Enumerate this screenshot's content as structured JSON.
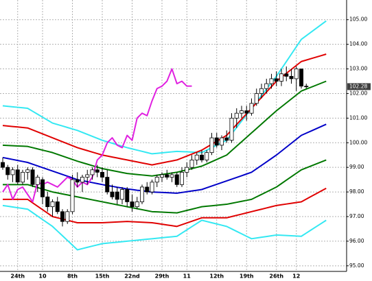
{
  "chart_data": {
    "type": "candlestick",
    "categories": [
      null,
      null,
      null,
      "24th",
      null,
      null,
      null,
      null,
      "10",
      null,
      null,
      null,
      null,
      null,
      "8th",
      null,
      null,
      null,
      null,
      null,
      "15th",
      null,
      null,
      null,
      null,
      null,
      "22nd",
      null,
      null,
      null,
      null,
      null,
      "29th",
      null,
      null,
      null,
      null,
      "11",
      null,
      null,
      null,
      null,
      null,
      "12th",
      null,
      null,
      null,
      null,
      null,
      "19th",
      null,
      null,
      null,
      null,
      null,
      "26th",
      null,
      null,
      null,
      "12",
      null,
      null,
      null,
      null,
      null,
      null
    ],
    "open": [
      99.2,
      99.0,
      98.7,
      98.9,
      98.4,
      98.8,
      98.9,
      98.3,
      98.5,
      97.8,
      97.4,
      97.6,
      97.2,
      96.8,
      97.2,
      98.5,
      98.4,
      98.6,
      98.7,
      98.9,
      98.8,
      98.6,
      98.0,
      98.0,
      97.7,
      98.1,
      97.6,
      97.4,
      97.6,
      98.2,
      98.0,
      98.4,
      98.6,
      98.7,
      98.6,
      98.7,
      98.3,
      98.8,
      99.0,
      99.3,
      99.5,
      99.3,
      99.6,
      100.2,
      99.9,
      100.2,
      100.1,
      101.0,
      101.2,
      101.3,
      101.2,
      101.6,
      102.0,
      102.2,
      102.4,
      102.6,
      102.5,
      102.8,
      102.7,
      102.6,
      103.0,
      102.3,
      null,
      null,
      null,
      null
    ],
    "high": [
      99.4,
      99.1,
      99.0,
      99.1,
      98.9,
      99.0,
      99.0,
      98.7,
      98.6,
      98.0,
      97.7,
      97.8,
      97.3,
      97.3,
      98.7,
      98.8,
      98.7,
      98.9,
      99.0,
      99.1,
      99.0,
      98.9,
      98.3,
      98.2,
      98.2,
      98.2,
      97.9,
      97.8,
      98.3,
      98.4,
      98.5,
      98.7,
      98.8,
      98.9,
      98.8,
      98.8,
      99.0,
      99.2,
      99.5,
      99.6,
      99.7,
      99.7,
      100.4,
      100.4,
      100.3,
      100.5,
      101.2,
      101.4,
      101.5,
      101.5,
      101.8,
      102.2,
      102.4,
      102.6,
      102.8,
      102.9,
      103.0,
      103.1,
      103.0,
      103.1,
      103.0,
      102.4,
      null,
      null,
      null,
      null
    ],
    "low": [
      98.9,
      98.5,
      98.4,
      98.3,
      98.3,
      98.5,
      98.2,
      98.0,
      97.5,
      97.2,
      97.0,
      97.1,
      96.6,
      96.7,
      97.1,
      98.2,
      98.0,
      98.3,
      98.5,
      98.6,
      98.4,
      97.9,
      97.7,
      97.5,
      97.5,
      97.4,
      97.2,
      97.3,
      97.5,
      97.9,
      97.9,
      98.2,
      98.4,
      98.5,
      98.4,
      98.2,
      98.2,
      98.6,
      98.9,
      99.1,
      99.2,
      99.2,
      99.5,
      99.8,
      99.7,
      100.0,
      100.0,
      100.6,
      101.0,
      100.9,
      101.1,
      101.5,
      101.8,
      102.0,
      102.2,
      102.3,
      102.3,
      102.5,
      102.4,
      102.1,
      102.2,
      102.2,
      null,
      null,
      null,
      null
    ],
    "close": [
      99.0,
      98.7,
      98.9,
      98.4,
      98.8,
      98.9,
      98.3,
      98.6,
      97.8,
      97.4,
      97.6,
      97.2,
      96.8,
      97.2,
      98.5,
      98.4,
      98.6,
      98.7,
      98.9,
      98.8,
      98.6,
      98.0,
      97.8,
      97.7,
      98.1,
      97.6,
      97.4,
      97.6,
      98.2,
      98.0,
      98.4,
      98.6,
      98.7,
      98.6,
      98.7,
      98.3,
      98.8,
      99.0,
      99.3,
      99.5,
      99.3,
      99.6,
      100.2,
      99.9,
      100.2,
      100.1,
      101.0,
      101.2,
      101.3,
      101.2,
      101.6,
      102.0,
      102.2,
      102.4,
      102.6,
      102.5,
      102.8,
      102.7,
      102.6,
      103.0,
      102.3,
      102.28,
      null,
      null,
      null,
      null
    ],
    "up_color": "#ffffff",
    "down_color": "#000000",
    "wick_color": "#000000",
    "series": [
      {
        "color": "#33e8f2",
        "values": [
          101.5,
          101.48,
          101.46,
          101.44,
          101.42,
          101.4,
          101.28,
          101.16,
          101.04,
          100.92,
          100.8,
          100.74,
          100.68,
          100.62,
          100.56,
          100.5,
          100.42,
          100.34,
          100.26,
          100.18,
          100.1,
          100.04,
          99.98,
          99.92,
          99.86,
          99.8,
          99.75,
          99.7,
          99.65,
          99.6,
          99.55,
          99.57,
          99.59,
          99.61,
          99.63,
          99.65,
          99.64,
          99.63,
          99.62,
          99.61,
          99.6,
          99.7,
          99.8,
          99.9,
          100.0,
          100.1,
          100.36,
          100.62,
          100.88,
          101.14,
          101.4,
          101.66,
          101.92,
          102.18,
          102.44,
          102.7,
          103.0,
          103.3,
          103.6,
          103.9,
          104.2,
          104.35,
          104.5,
          104.65,
          104.8,
          104.95
        ]
      },
      {
        "color": "#e00000",
        "values": [
          100.7,
          100.68,
          100.66,
          100.64,
          100.62,
          100.6,
          100.52,
          100.44,
          100.36,
          100.28,
          100.2,
          100.12,
          100.04,
          99.96,
          99.88,
          99.8,
          99.74,
          99.68,
          99.62,
          99.56,
          99.5,
          99.46,
          99.42,
          99.38,
          99.34,
          99.3,
          99.26,
          99.22,
          99.18,
          99.14,
          99.1,
          99.14,
          99.18,
          99.22,
          99.26,
          99.3,
          99.38,
          99.46,
          99.54,
          99.62,
          99.7,
          99.82,
          99.94,
          100.06,
          100.18,
          100.3,
          100.52,
          100.74,
          100.96,
          101.18,
          101.4,
          101.62,
          101.84,
          102.06,
          102.28,
          102.5,
          102.66,
          102.82,
          102.98,
          103.14,
          103.3,
          103.36,
          103.42,
          103.48,
          103.54,
          103.6
        ]
      },
      {
        "color": "#007800",
        "values": [
          99.9,
          99.89,
          99.88,
          99.87,
          99.86,
          99.85,
          99.8,
          99.75,
          99.7,
          99.65,
          99.6,
          99.53,
          99.46,
          99.39,
          99.32,
          99.25,
          99.19,
          99.13,
          99.07,
          99.01,
          98.95,
          98.91,
          98.87,
          98.83,
          98.79,
          98.75,
          98.73,
          98.71,
          98.69,
          98.67,
          98.65,
          98.68,
          98.71,
          98.74,
          98.77,
          98.8,
          98.85,
          98.9,
          98.95,
          99.0,
          99.05,
          99.14,
          99.23,
          99.32,
          99.41,
          99.5,
          99.68,
          99.86,
          100.04,
          100.22,
          100.4,
          100.58,
          100.76,
          100.94,
          101.12,
          101.3,
          101.46,
          101.62,
          101.78,
          101.94,
          102.1,
          102.18,
          102.26,
          102.34,
          102.42,
          102.5
        ]
      },
      {
        "color": "#0000c8",
        "values": [
          99.4,
          99.36,
          99.32,
          99.28,
          99.24,
          99.2,
          99.13,
          99.06,
          98.99,
          98.92,
          98.85,
          98.78,
          98.71,
          98.64,
          98.57,
          98.5,
          98.46,
          98.42,
          98.38,
          98.34,
          98.3,
          98.26,
          98.23,
          98.19,
          98.16,
          98.12,
          98.1,
          98.07,
          98.05,
          98.02,
          98.0,
          97.99,
          97.98,
          97.97,
          97.96,
          97.95,
          97.98,
          98.01,
          98.04,
          98.07,
          98.1,
          98.17,
          98.24,
          98.31,
          98.38,
          98.45,
          98.52,
          98.59,
          98.66,
          98.73,
          98.8,
          98.94,
          99.08,
          99.22,
          99.36,
          99.5,
          99.66,
          99.82,
          99.98,
          100.14,
          100.3,
          100.39,
          100.48,
          100.57,
          100.66,
          100.75
        ]
      },
      {
        "color": "#007800",
        "values": [
          98.3,
          98.3,
          98.3,
          98.3,
          98.3,
          98.3,
          98.24,
          98.18,
          98.12,
          98.06,
          98.0,
          97.96,
          97.92,
          97.88,
          97.84,
          97.8,
          97.76,
          97.72,
          97.68,
          97.64,
          97.6,
          97.56,
          97.52,
          97.48,
          97.44,
          97.4,
          97.36,
          97.32,
          97.28,
          97.24,
          97.2,
          97.19,
          97.18,
          97.17,
          97.16,
          97.15,
          97.2,
          97.25,
          97.3,
          97.35,
          97.4,
          97.42,
          97.44,
          97.46,
          97.48,
          97.5,
          97.54,
          97.58,
          97.62,
          97.66,
          97.7,
          97.8,
          97.9,
          98.0,
          98.1,
          98.2,
          98.34,
          98.48,
          98.62,
          98.76,
          98.9,
          98.98,
          99.06,
          99.14,
          99.22,
          99.3
        ]
      },
      {
        "color": "#e00000",
        "values": [
          97.7,
          97.7,
          97.7,
          97.7,
          97.7,
          97.7,
          97.56,
          97.42,
          97.28,
          97.14,
          97.0,
          96.95,
          96.9,
          96.85,
          96.8,
          96.75,
          96.75,
          96.75,
          96.75,
          96.75,
          96.75,
          96.76,
          96.77,
          96.78,
          96.79,
          96.8,
          96.79,
          96.78,
          96.77,
          96.76,
          96.75,
          96.72,
          96.69,
          96.66,
          96.63,
          96.6,
          96.67,
          96.74,
          96.81,
          96.88,
          96.95,
          96.95,
          96.95,
          96.95,
          96.95,
          96.95,
          97.0,
          97.05,
          97.1,
          97.15,
          97.2,
          97.25,
          97.3,
          97.35,
          97.4,
          97.45,
          97.48,
          97.51,
          97.54,
          97.57,
          97.6,
          97.71,
          97.82,
          97.93,
          98.04,
          98.15
        ]
      },
      {
        "color": "#33e8f2",
        "values": [
          97.45,
          97.42,
          97.39,
          97.36,
          97.33,
          97.3,
          97.16,
          97.02,
          96.88,
          96.74,
          96.6,
          96.41,
          96.22,
          96.03,
          95.84,
          95.65,
          95.7,
          95.75,
          95.8,
          95.85,
          95.9,
          95.92,
          95.94,
          95.96,
          95.98,
          96.0,
          96.02,
          96.04,
          96.06,
          96.08,
          96.1,
          96.12,
          96.14,
          96.16,
          96.18,
          96.2,
          96.33,
          96.46,
          96.59,
          96.72,
          96.85,
          96.8,
          96.75,
          96.7,
          96.65,
          96.6,
          96.5,
          96.4,
          96.3,
          96.2,
          96.1,
          96.13,
          96.16,
          96.19,
          96.22,
          96.25,
          96.24,
          96.23,
          96.22,
          96.21,
          96.2,
          96.33,
          96.46,
          96.59,
          96.72,
          96.85
        ]
      },
      {
        "color": "#e020e0",
        "values": [
          98.0,
          98.3,
          97.7,
          98.1,
          98.2,
          97.9,
          97.6,
          98.4,
          98.3,
          98.4,
          98.3,
          98.2,
          98.4,
          98.6,
          98.5,
          98.2,
          98.4,
          98.3,
          98.6,
          99.3,
          99.5,
          100.0,
          100.2,
          99.9,
          99.8,
          100.3,
          100.1,
          101.0,
          101.2,
          101.1,
          101.7,
          102.2,
          102.3,
          102.5,
          103.0,
          102.4,
          102.5,
          102.3,
          102.3,
          null,
          null,
          null,
          null,
          null,
          null,
          null,
          null,
          null,
          null,
          null,
          null,
          null,
          null,
          null,
          null,
          null,
          null,
          null,
          null,
          null,
          null,
          null,
          null,
          null,
          null,
          null
        ]
      }
    ],
    "last_price": {
      "value": 102.28,
      "label": "102.28"
    },
    "ylim": [
      94.8,
      105.8
    ],
    "yticks": [
      {
        "value": 95,
        "label": "95.00"
      },
      {
        "value": 96,
        "label": "96.00"
      },
      {
        "value": 97,
        "label": "97.00"
      },
      {
        "value": 98,
        "label": "98.00"
      },
      {
        "value": 99,
        "label": "99.00"
      },
      {
        "value": 100,
        "label": "100.00"
      },
      {
        "value": 101,
        "label": "101.00"
      },
      {
        "value": 102,
        "label": "102.00"
      },
      {
        "value": 103,
        "label": "103.00"
      },
      {
        "value": 104,
        "label": "104.00"
      },
      {
        "value": 105,
        "label": "105.00"
      }
    ],
    "grid": true
  }
}
